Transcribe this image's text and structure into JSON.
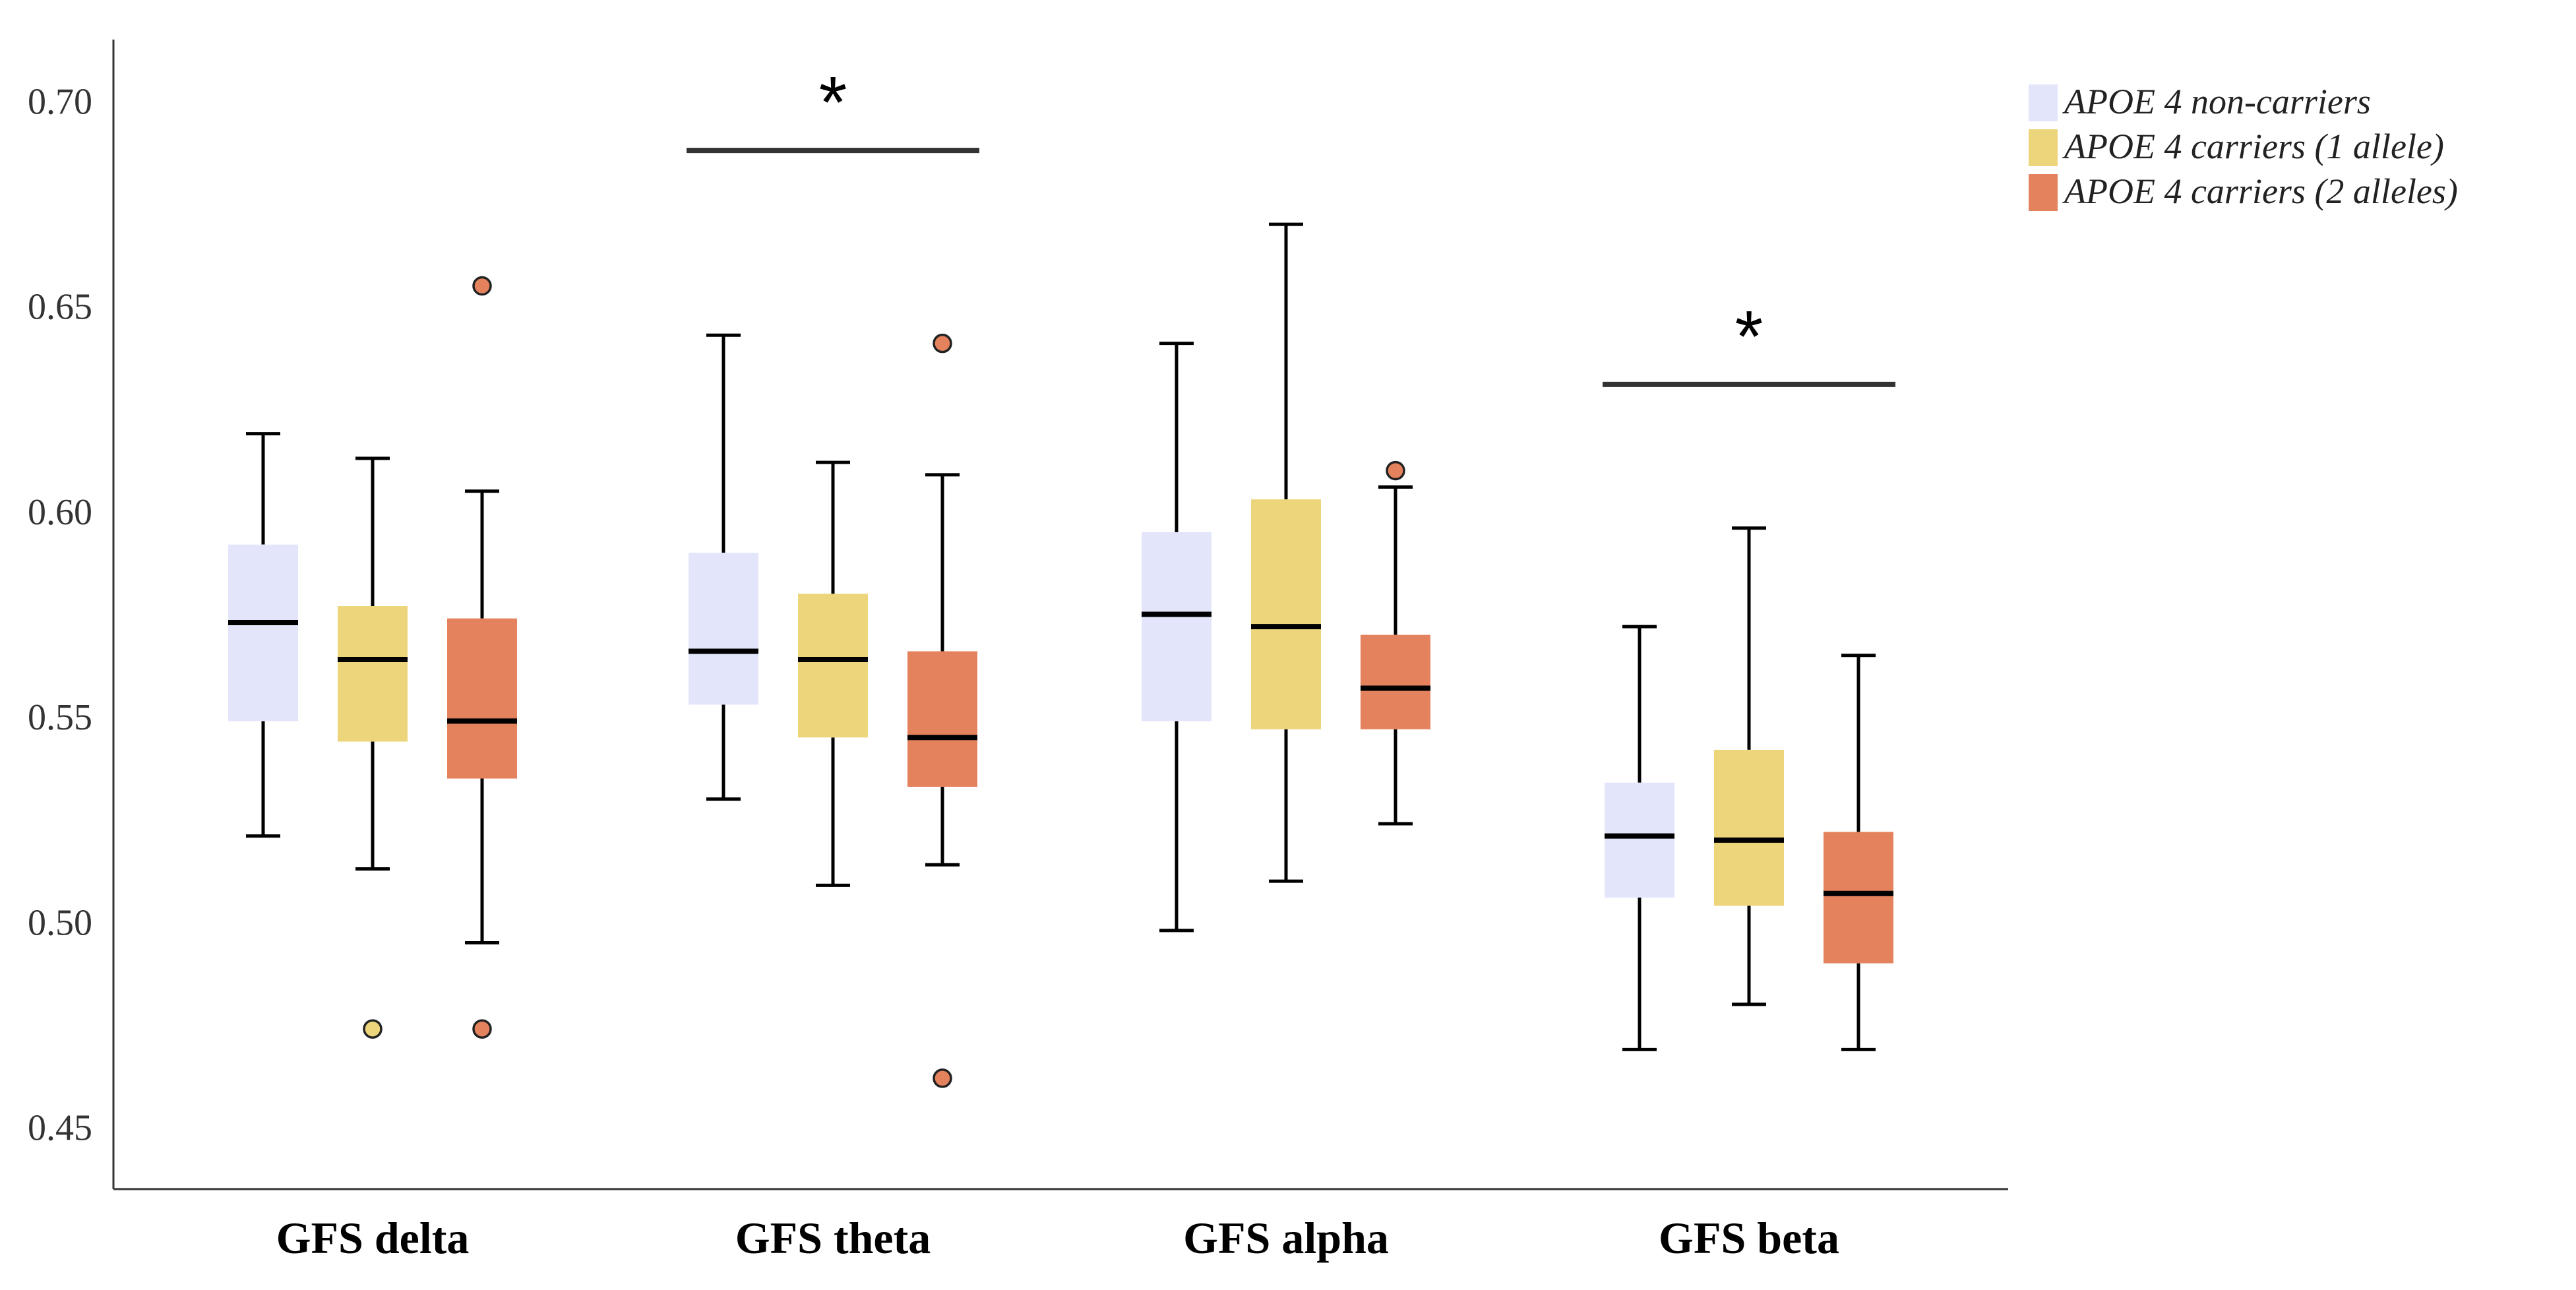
{
  "chart_data": {
    "type": "boxplot",
    "title": "",
    "xlabel": "",
    "ylabel": "",
    "ylim": [
      0.435,
      0.715
    ],
    "yticks": [
      "0.45",
      "0.50",
      "0.55",
      "0.60",
      "0.65",
      "0.70"
    ],
    "grid": false,
    "legend_position": "top-right",
    "categories": [
      "GFS delta",
      "GFS theta",
      "GFS alpha",
      "GFS beta"
    ],
    "series": [
      {
        "name": "APOE 4 non-carriers",
        "color": "#e3e6fb",
        "boxes": [
          {
            "whisker_low": 0.521,
            "q1": 0.549,
            "median": 0.573,
            "q3": 0.592,
            "whisker_high": 0.619,
            "outliers": []
          },
          {
            "whisker_low": 0.53,
            "q1": 0.553,
            "median": 0.566,
            "q3": 0.59,
            "whisker_high": 0.643,
            "outliers": []
          },
          {
            "whisker_low": 0.498,
            "q1": 0.549,
            "median": 0.575,
            "q3": 0.595,
            "whisker_high": 0.641,
            "outliers": []
          },
          {
            "whisker_low": 0.469,
            "q1": 0.506,
            "median": 0.521,
            "q3": 0.534,
            "whisker_high": 0.572,
            "outliers": []
          }
        ]
      },
      {
        "name": "APOE 4 carriers (1 allele)",
        "color": "#ecd57a",
        "boxes": [
          {
            "whisker_low": 0.513,
            "q1": 0.544,
            "median": 0.564,
            "q3": 0.577,
            "whisker_high": 0.613,
            "outliers": [
              0.474
            ]
          },
          {
            "whisker_low": 0.509,
            "q1": 0.545,
            "median": 0.564,
            "q3": 0.58,
            "whisker_high": 0.612,
            "outliers": []
          },
          {
            "whisker_low": 0.51,
            "q1": 0.547,
            "median": 0.572,
            "q3": 0.603,
            "whisker_high": 0.67,
            "outliers": []
          },
          {
            "whisker_low": 0.48,
            "q1": 0.504,
            "median": 0.52,
            "q3": 0.542,
            "whisker_high": 0.596,
            "outliers": []
          }
        ]
      },
      {
        "name": "APOE 4 carriers (2 alleles)",
        "color": "#e5825e",
        "boxes": [
          {
            "whisker_low": 0.495,
            "q1": 0.535,
            "median": 0.549,
            "q3": 0.574,
            "whisker_high": 0.605,
            "outliers": [
              0.474,
              0.655
            ]
          },
          {
            "whisker_low": 0.514,
            "q1": 0.533,
            "median": 0.545,
            "q3": 0.566,
            "whisker_high": 0.609,
            "outliers": [
              0.462,
              0.641
            ]
          },
          {
            "whisker_low": 0.524,
            "q1": 0.547,
            "median": 0.557,
            "q3": 0.57,
            "whisker_high": 0.606,
            "outliers": [
              0.61
            ]
          },
          {
            "whisker_low": 0.469,
            "q1": 0.49,
            "median": 0.507,
            "q3": 0.522,
            "whisker_high": 0.565,
            "outliers": []
          }
        ]
      }
    ],
    "annotations": [
      {
        "category_index": 1,
        "label": "*",
        "y": 0.688
      },
      {
        "category_index": 3,
        "label": "*",
        "y": 0.631
      }
    ]
  }
}
